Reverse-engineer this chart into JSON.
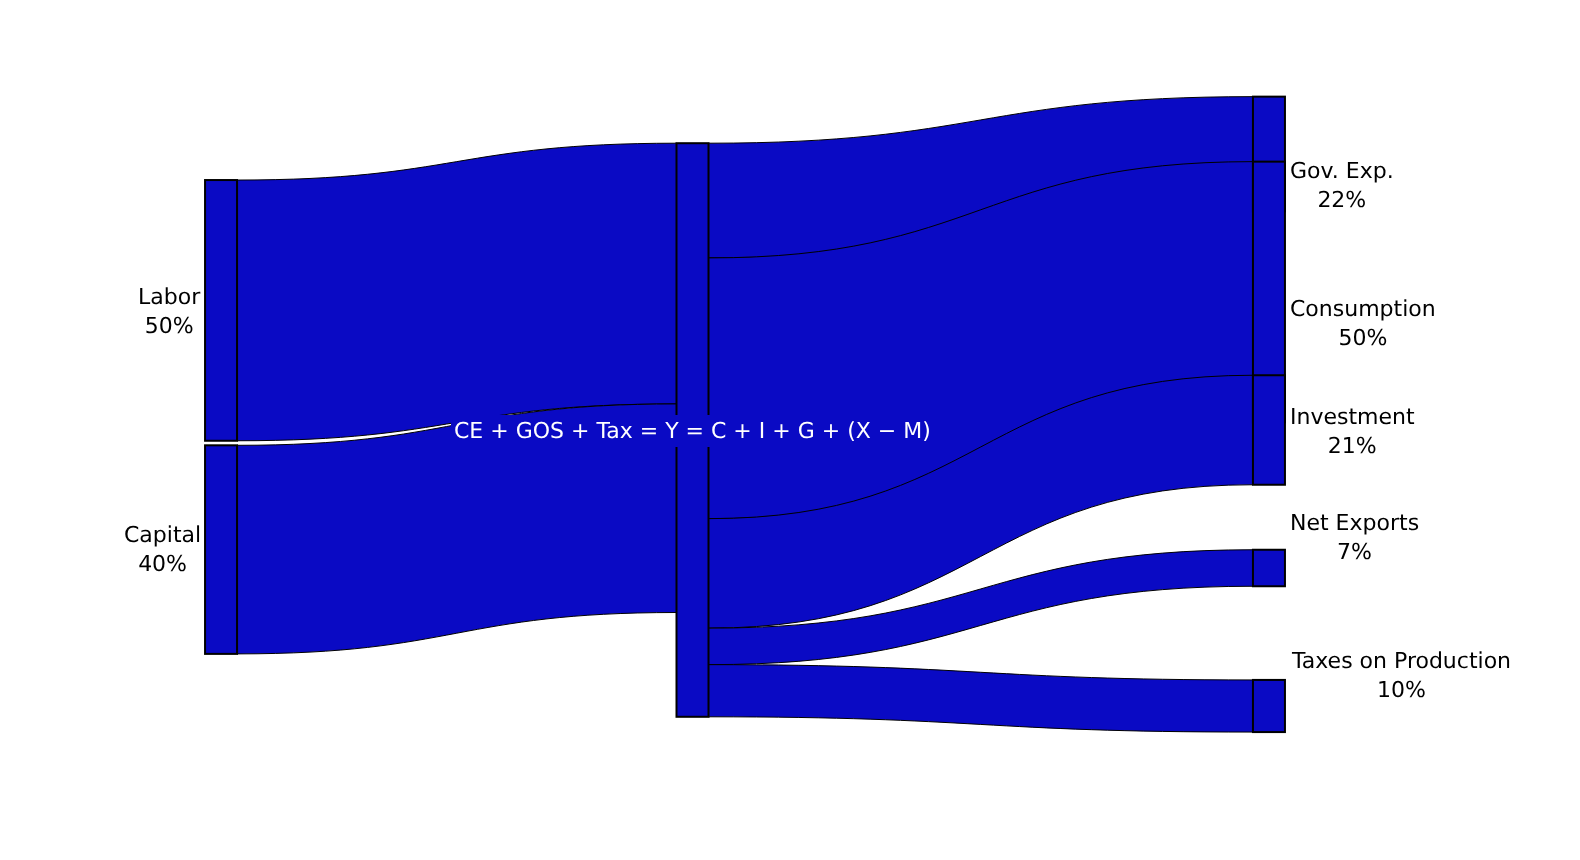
{
  "chart_data": {
    "type": "other",
    "categories": [
      "Labor",
      "Capital",
      "Gov. Exp.",
      "Consumption",
      "Investment",
      "Net Exports",
      "Taxes on Production"
    ],
    "series": [
      {
        "color": "#0a0ac4",
        "values": [
          50,
          40,
          null,
          null,
          null,
          null,
          null
        ],
        "value_labels": [
          "50%",
          "40%",
          null,
          null,
          null,
          null,
          null
        ]
      },
      {
        "color": "#0a0ac4",
        "values": [
          null,
          null,
          22,
          50,
          21,
          7,
          10
        ],
        "value_labels": [
          null,
          null,
          "22%",
          "50%",
          "21%",
          "7%",
          "10%"
        ]
      }
    ],
    "annotations": [
      "CE + GOS + Tax = Y = C + I + G + (X − M)"
    ]
  }
}
